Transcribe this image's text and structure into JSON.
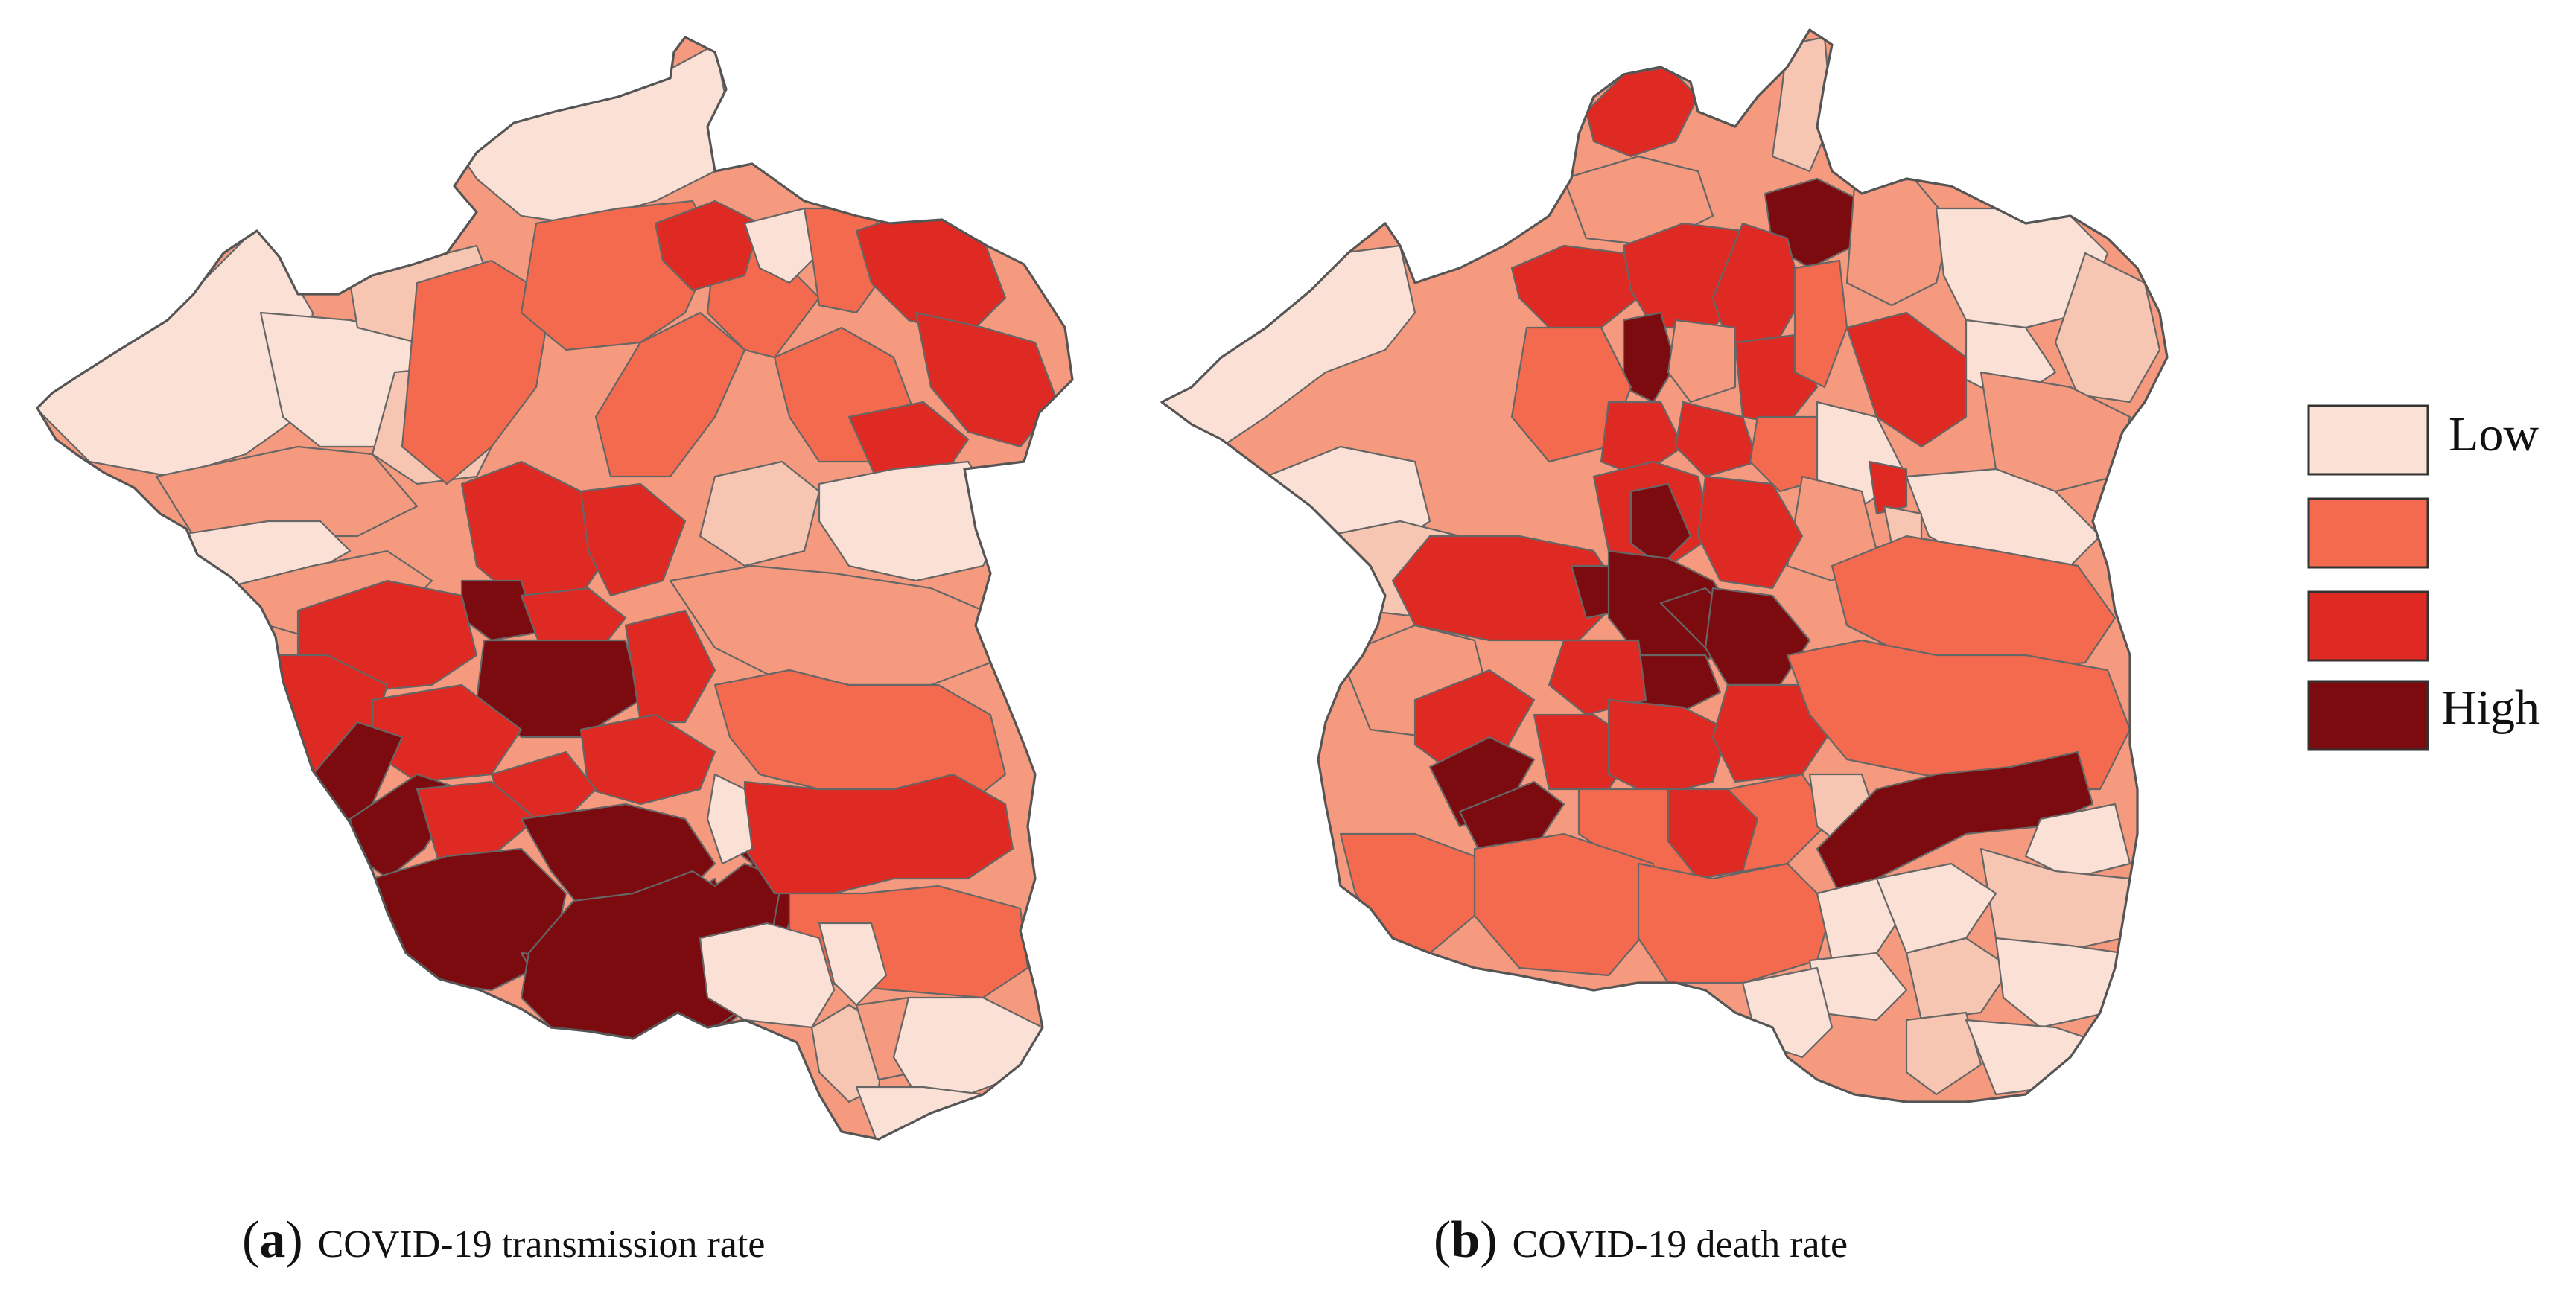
{
  "colors": {
    "class_1": "#fbe0d6",
    "class_2": "#f46a4e",
    "class_3": "#df2a24",
    "class_4": "#7c0b10",
    "soft_1": "#f7c6b2",
    "soft_2": "#f59a7e",
    "border": "#666666"
  },
  "legend": {
    "items": [
      {
        "label": "Low",
        "class": 1
      },
      {
        "label": "",
        "class": 2
      },
      {
        "label": "",
        "class": 3
      },
      {
        "label": "High",
        "class": 4
      }
    ]
  },
  "panels": [
    {
      "id": "a",
      "letter": "a",
      "caption": "COVID-19 transmission rate"
    },
    {
      "id": "b",
      "letter": "b",
      "caption": "COVID-19 death rate"
    }
  ]
}
